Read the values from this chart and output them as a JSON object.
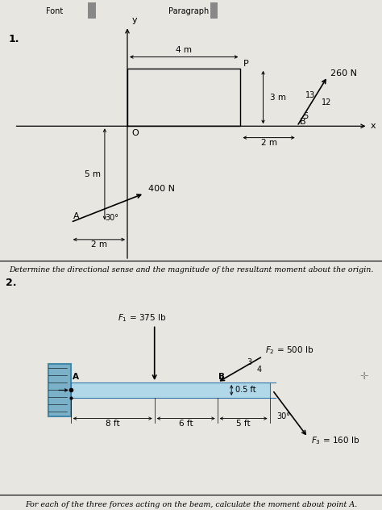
{
  "toolbar_color": "#c8c4a0",
  "page_color": "#e8e6e0",
  "font_text": "Font",
  "paragraph_text": "Paragraph",
  "problem1_label": "1.",
  "problem2_label": "2.",
  "caption1": "Determine the directional sense and the magnitude of the resultant moment about the origin.",
  "caption2": "For each of the three forces acting on the beam, calculate the moment about point A.",
  "d1_label_4m": "4 m",
  "d1_label_3m": "3 m",
  "d1_label_2m_horiz": "2 m",
  "d1_label_2m_vert": "2 m",
  "d1_label_5m": "5 m",
  "d1_label_O": "O",
  "d1_label_P": "P",
  "d1_label_B": "B",
  "d1_label_A": "A",
  "d1_label_x": "x",
  "d1_label_y": "y",
  "d1_force_260N": "260 N",
  "d1_force_400N": "400 N",
  "d1_angle_30": "30°",
  "d1_ratio_13": "13",
  "d1_ratio_12": "12",
  "d1_ratio_5": "5",
  "d2_F1_label": "$F_1$ = 375 lb",
  "d2_F2_label": "$F_2$ = 500 lb",
  "d2_F3_label": "$F_3$ = 160 lb",
  "d2_label_A": "A",
  "d2_label_B": "B",
  "d2_dim_8ft": "8 ft",
  "d2_dim_6ft": "6 ft",
  "d2_dim_5ft": "5 ft",
  "d2_dim_05ft": "0.5 ft",
  "d2_beam_color": "#b0d8e8",
  "d2_wall_color": "#7ab0c8",
  "d2_ratio_3": "3",
  "d2_ratio_4": "4"
}
